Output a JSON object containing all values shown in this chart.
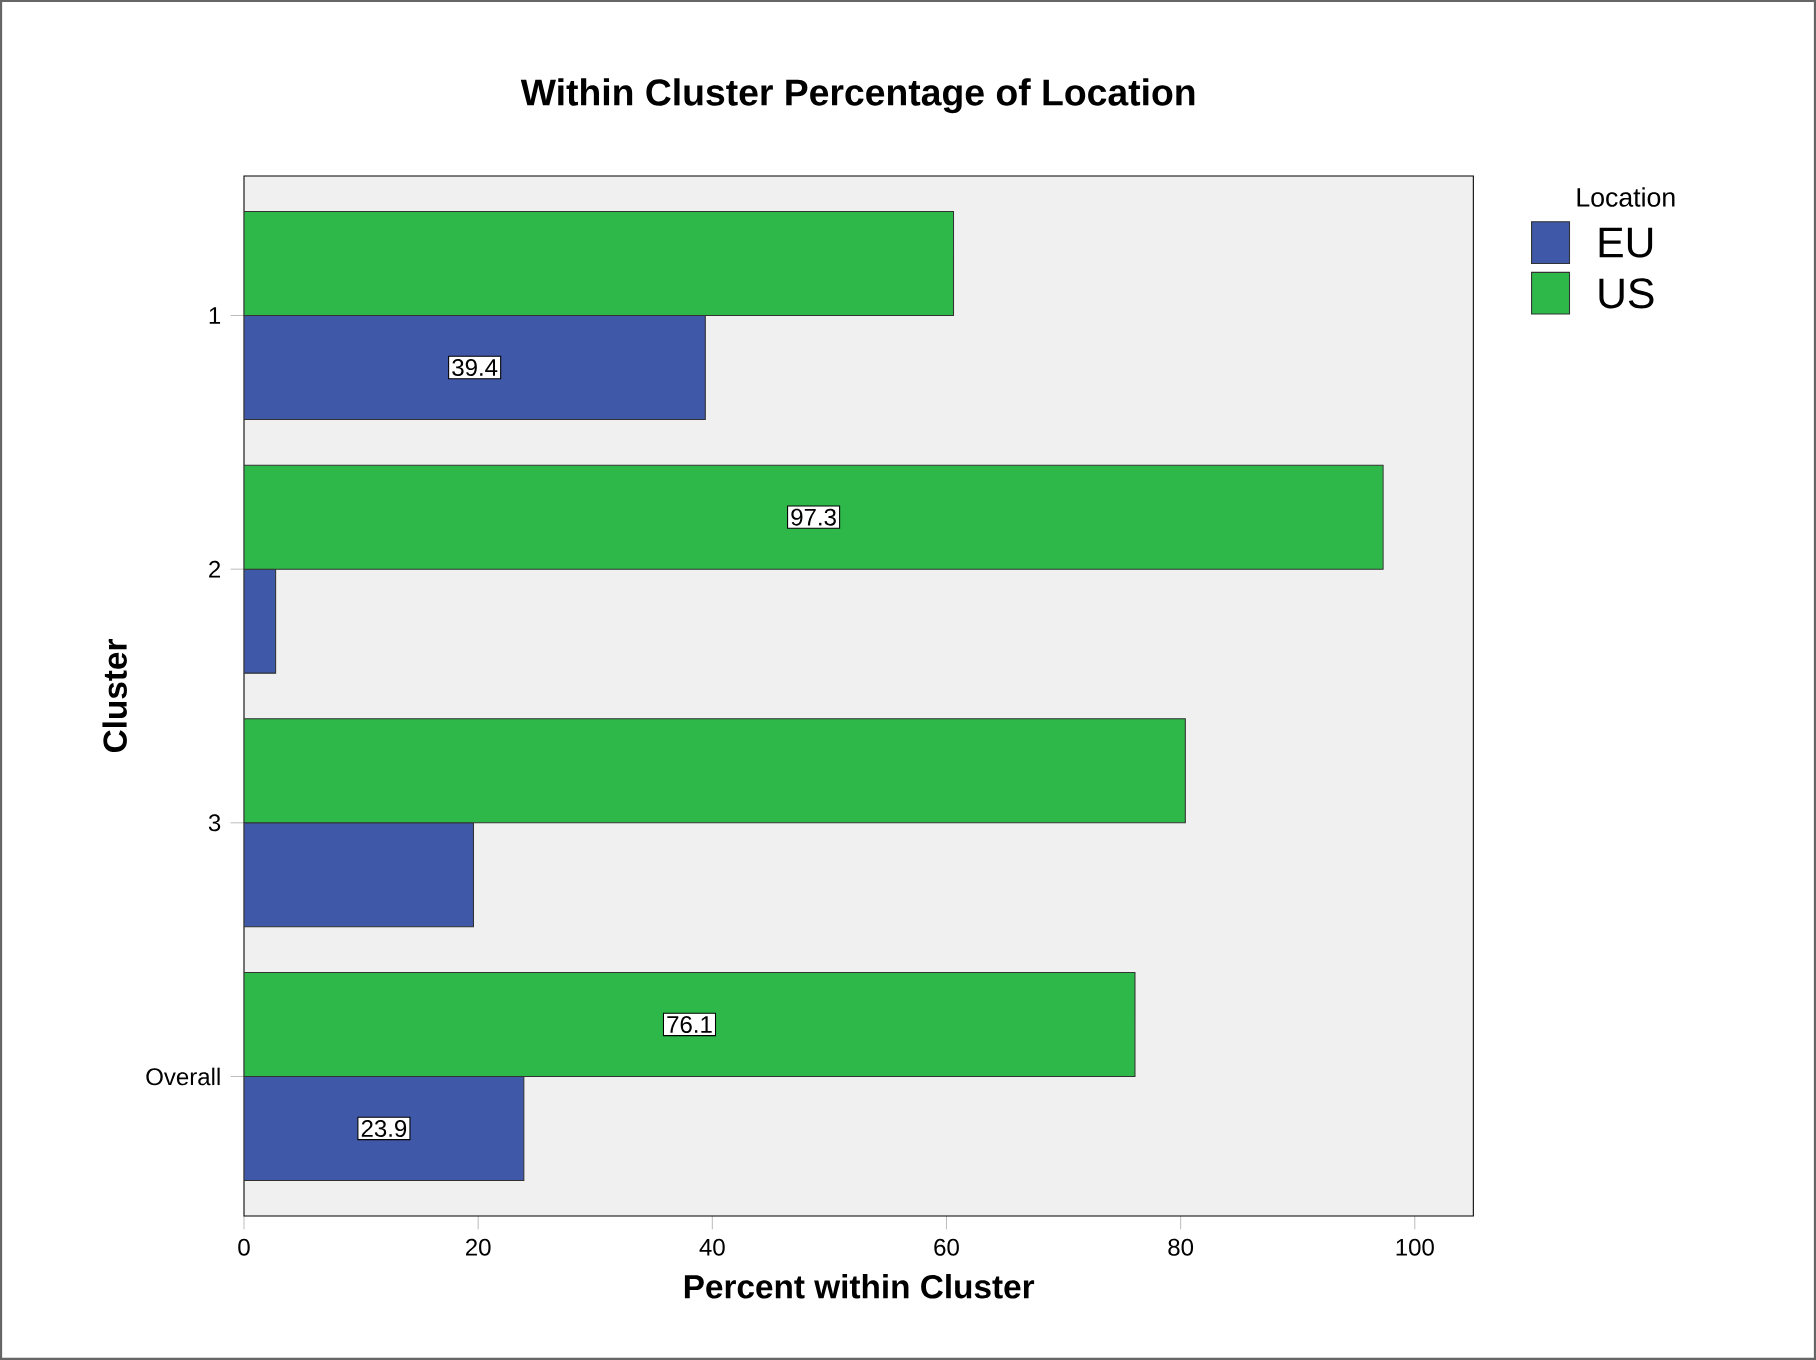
{
  "chart_data": {
    "type": "bar",
    "orientation": "horizontal",
    "title": "Within Cluster Percentage of Location",
    "xlabel": "Percent within Cluster",
    "ylabel": "Cluster",
    "legend_title": "Location",
    "legend": "right",
    "categories": [
      "1",
      "2",
      "3",
      "Overall"
    ],
    "series": [
      {
        "name": "EU",
        "color": "#3f58a8",
        "values": [
          39.4,
          2.7,
          19.6,
          23.9
        ],
        "value_labels": [
          "39.4",
          null,
          null,
          "23.9"
        ]
      },
      {
        "name": "US",
        "color": "#2eb84a",
        "values": [
          60.6,
          97.3,
          80.4,
          76.1
        ],
        "value_labels": [
          null,
          "97.3",
          null,
          "76.1"
        ]
      }
    ],
    "xlim": [
      0,
      105
    ],
    "xticks": [
      0,
      20,
      40,
      60,
      80,
      100
    ],
    "grid": false
  }
}
